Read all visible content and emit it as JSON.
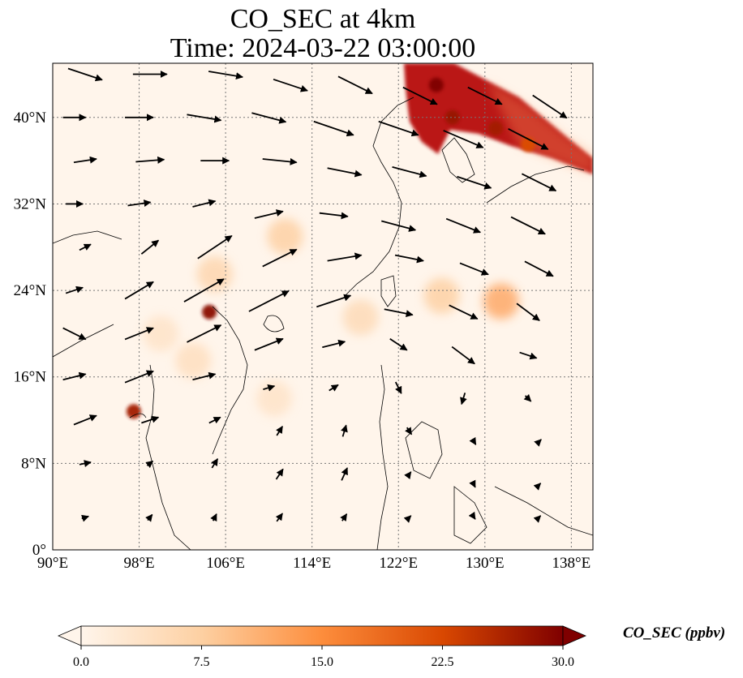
{
  "chart_data": {
    "type": "heatmap",
    "title": "CO_SEC at 4km",
    "subtitle": "Time: 2024-03-22 03:00:00",
    "x_ticks": [
      "90°E",
      "98°E",
      "106°E",
      "114°E",
      "122°E",
      "130°E",
      "138°E"
    ],
    "y_ticks": [
      "0°",
      "8°N",
      "16°N",
      "24°N",
      "32°N",
      "40°N"
    ],
    "xlim": [
      90,
      140
    ],
    "ylim": [
      0,
      45
    ],
    "grid": true,
    "colorbar": {
      "label": "CO_SEC (ppbv)",
      "ticks": [
        "0.0",
        "7.5",
        "15.0",
        "22.5",
        "30.0"
      ],
      "range": [
        0,
        30
      ],
      "extend": "both",
      "colors": [
        "#fff5eb",
        "#fdd0a2",
        "#fd8d3c",
        "#d94801",
        "#7f0000"
      ]
    },
    "hotspots": [
      {
        "lon": 125.5,
        "lat": 43.0,
        "value": 30
      },
      {
        "lon": 127.0,
        "lat": 40.0,
        "value": 28
      },
      {
        "lon": 131.0,
        "lat": 39.0,
        "value": 27
      },
      {
        "lon": 134.0,
        "lat": 37.5,
        "value": 22
      },
      {
        "lon": 104.5,
        "lat": 22.0,
        "value": 29
      },
      {
        "lon": 97.5,
        "lat": 12.8,
        "value": 27
      },
      {
        "lon": 131.5,
        "lat": 23.0,
        "value": 13
      },
      {
        "lon": 126.0,
        "lat": 23.5,
        "value": 8
      },
      {
        "lon": 111.5,
        "lat": 29.0,
        "value": 8
      },
      {
        "lon": 105.0,
        "lat": 25.5,
        "value": 7
      },
      {
        "lon": 118.5,
        "lat": 21.5,
        "value": 6
      },
      {
        "lon": 103.0,
        "lat": 17.5,
        "value": 5
      },
      {
        "lon": 110.5,
        "lat": 14.0,
        "value": 4
      },
      {
        "lon": 100.0,
        "lat": 20.0,
        "value": 4
      }
    ],
    "wind_vectors": [
      {
        "lon": 93,
        "lat": 44,
        "u": 3,
        "v": -1
      },
      {
        "lon": 99,
        "lat": 44,
        "u": 3,
        "v": 0
      },
      {
        "lon": 106,
        "lat": 44,
        "u": 3,
        "v": -0.5
      },
      {
        "lon": 112,
        "lat": 43,
        "u": 3,
        "v": -1
      },
      {
        "lon": 118,
        "lat": 43,
        "u": 3,
        "v": -1.5
      },
      {
        "lon": 124,
        "lat": 42,
        "u": 3,
        "v": -1.5
      },
      {
        "lon": 130,
        "lat": 42,
        "u": 3,
        "v": -1.5
      },
      {
        "lon": 136,
        "lat": 41,
        "u": 3,
        "v": -2
      },
      {
        "lon": 92,
        "lat": 40,
        "u": 2,
        "v": 0
      },
      {
        "lon": 98,
        "lat": 40,
        "u": 2.5,
        "v": 0
      },
      {
        "lon": 104,
        "lat": 40,
        "u": 3,
        "v": -0.5
      },
      {
        "lon": 110,
        "lat": 40,
        "u": 3,
        "v": -0.8
      },
      {
        "lon": 116,
        "lat": 39,
        "u": 3.5,
        "v": -1.2
      },
      {
        "lon": 122,
        "lat": 39,
        "u": 3.5,
        "v": -1.2
      },
      {
        "lon": 128,
        "lat": 38,
        "u": 3.5,
        "v": -1.5
      },
      {
        "lon": 134,
        "lat": 38,
        "u": 3.5,
        "v": -1.8
      },
      {
        "lon": 93,
        "lat": 36,
        "u": 2,
        "v": 0.3
      },
      {
        "lon": 99,
        "lat": 36,
        "u": 2.5,
        "v": 0.2
      },
      {
        "lon": 105,
        "lat": 36,
        "u": 2.5,
        "v": 0
      },
      {
        "lon": 111,
        "lat": 36,
        "u": 3,
        "v": -0.3
      },
      {
        "lon": 117,
        "lat": 35,
        "u": 3,
        "v": -0.6
      },
      {
        "lon": 123,
        "lat": 35,
        "u": 3,
        "v": -0.8
      },
      {
        "lon": 129,
        "lat": 34,
        "u": 3,
        "v": -1
      },
      {
        "lon": 135,
        "lat": 34,
        "u": 3,
        "v": -1.5
      },
      {
        "lon": 92,
        "lat": 32,
        "u": 1.5,
        "v": 0
      },
      {
        "lon": 98,
        "lat": 32,
        "u": 2,
        "v": 0.3
      },
      {
        "lon": 104,
        "lat": 32,
        "u": 2,
        "v": 0.5
      },
      {
        "lon": 110,
        "lat": 31,
        "u": 2.5,
        "v": 0.6
      },
      {
        "lon": 116,
        "lat": 31,
        "u": 2.5,
        "v": -0.3
      },
      {
        "lon": 122,
        "lat": 30,
        "u": 3,
        "v": -0.8
      },
      {
        "lon": 128,
        "lat": 30,
        "u": 3,
        "v": -1.2
      },
      {
        "lon": 134,
        "lat": 30,
        "u": 3,
        "v": -1.5
      },
      {
        "lon": 93,
        "lat": 28,
        "u": 1,
        "v": 0.5
      },
      {
        "lon": 99,
        "lat": 28,
        "u": 1.5,
        "v": 1.2
      },
      {
        "lon": 105,
        "lat": 28,
        "u": 3,
        "v": 2
      },
      {
        "lon": 111,
        "lat": 27,
        "u": 3,
        "v": 1.5
      },
      {
        "lon": 117,
        "lat": 27,
        "u": 3,
        "v": 0.5
      },
      {
        "lon": 123,
        "lat": 27,
        "u": 2.5,
        "v": -0.5
      },
      {
        "lon": 129,
        "lat": 26,
        "u": 2.5,
        "v": -1
      },
      {
        "lon": 135,
        "lat": 26,
        "u": 2.5,
        "v": -1.3
      },
      {
        "lon": 92,
        "lat": 24,
        "u": 1.5,
        "v": 0.5
      },
      {
        "lon": 98,
        "lat": 24,
        "u": 2.5,
        "v": 1.5
      },
      {
        "lon": 104,
        "lat": 24,
        "u": 3.5,
        "v": 2
      },
      {
        "lon": 110,
        "lat": 23,
        "u": 3.5,
        "v": 1.8
      },
      {
        "lon": 116,
        "lat": 23,
        "u": 3,
        "v": 1
      },
      {
        "lon": 122,
        "lat": 22,
        "u": 2.5,
        "v": -0.5
      },
      {
        "lon": 128,
        "lat": 22,
        "u": 2.5,
        "v": -1.2
      },
      {
        "lon": 134,
        "lat": 22,
        "u": 2,
        "v": -1.5
      },
      {
        "lon": 92,
        "lat": 20,
        "u": 2,
        "v": -1
      },
      {
        "lon": 98,
        "lat": 20,
        "u": 2.5,
        "v": 1
      },
      {
        "lon": 104,
        "lat": 20,
        "u": 3,
        "v": 1.5
      },
      {
        "lon": 110,
        "lat": 19,
        "u": 2.5,
        "v": 1
      },
      {
        "lon": 116,
        "lat": 19,
        "u": 2,
        "v": 0.5
      },
      {
        "lon": 122,
        "lat": 19,
        "u": 1.5,
        "v": -1
      },
      {
        "lon": 128,
        "lat": 18,
        "u": 2,
        "v": -1.5
      },
      {
        "lon": 134,
        "lat": 18,
        "u": 1.5,
        "v": -0.5
      },
      {
        "lon": 92,
        "lat": 16,
        "u": 2,
        "v": 0.5
      },
      {
        "lon": 98,
        "lat": 16,
        "u": 2.5,
        "v": 1
      },
      {
        "lon": 104,
        "lat": 16,
        "u": 2,
        "v": 0.5
      },
      {
        "lon": 110,
        "lat": 15,
        "u": 1,
        "v": 0.3
      },
      {
        "lon": 116,
        "lat": 15,
        "u": 0.8,
        "v": 0.5
      },
      {
        "lon": 122,
        "lat": 15,
        "u": 0.5,
        "v": -1
      },
      {
        "lon": 128,
        "lat": 14,
        "u": -0.3,
        "v": -1
      },
      {
        "lon": 134,
        "lat": 14,
        "u": 0.5,
        "v": -0.5
      },
      {
        "lon": 93,
        "lat": 12,
        "u": 2,
        "v": 0.8
      },
      {
        "lon": 99,
        "lat": 12,
        "u": 1.5,
        "v": 0.5
      },
      {
        "lon": 105,
        "lat": 12,
        "u": 1,
        "v": 0.5
      },
      {
        "lon": 111,
        "lat": 11,
        "u": 0.5,
        "v": 0.8
      },
      {
        "lon": 117,
        "lat": 11,
        "u": 0.3,
        "v": 1
      },
      {
        "lon": 123,
        "lat": 11,
        "u": 0.4,
        "v": -0.6
      },
      {
        "lon": 129,
        "lat": 10,
        "u": 0.3,
        "v": -0.5
      },
      {
        "lon": 135,
        "lat": 10,
        "u": 0.4,
        "v": 0.4
      },
      {
        "lon": 93,
        "lat": 8,
        "u": 1,
        "v": 0.2
      },
      {
        "lon": 99,
        "lat": 8,
        "u": 0.5,
        "v": 0.4
      },
      {
        "lon": 105,
        "lat": 8,
        "u": 0.5,
        "v": 0.8
      },
      {
        "lon": 111,
        "lat": 7,
        "u": 0.6,
        "v": 0.9
      },
      {
        "lon": 117,
        "lat": 7,
        "u": 0.5,
        "v": 1.1
      },
      {
        "lon": 123,
        "lat": 7,
        "u": 0.3,
        "v": 0.4
      },
      {
        "lon": 129,
        "lat": 6,
        "u": 0.2,
        "v": -0.4
      },
      {
        "lon": 135,
        "lat": 6,
        "u": 0.3,
        "v": 0.3
      },
      {
        "lon": 93,
        "lat": 3,
        "u": 0.6,
        "v": 0.2
      },
      {
        "lon": 99,
        "lat": 3,
        "u": 0.4,
        "v": 0.5
      },
      {
        "lon": 105,
        "lat": 3,
        "u": 0.3,
        "v": 0.6
      },
      {
        "lon": 111,
        "lat": 3,
        "u": 0.5,
        "v": 0.7
      },
      {
        "lon": 117,
        "lat": 3,
        "u": 0.4,
        "v": 0.6
      },
      {
        "lon": 123,
        "lat": 3,
        "u": 0.3,
        "v": 0.3
      },
      {
        "lon": 129,
        "lat": 3,
        "u": 0.2,
        "v": -0.3
      },
      {
        "lon": 135,
        "lat": 3,
        "u": 0.3,
        "v": 0.3
      }
    ]
  }
}
